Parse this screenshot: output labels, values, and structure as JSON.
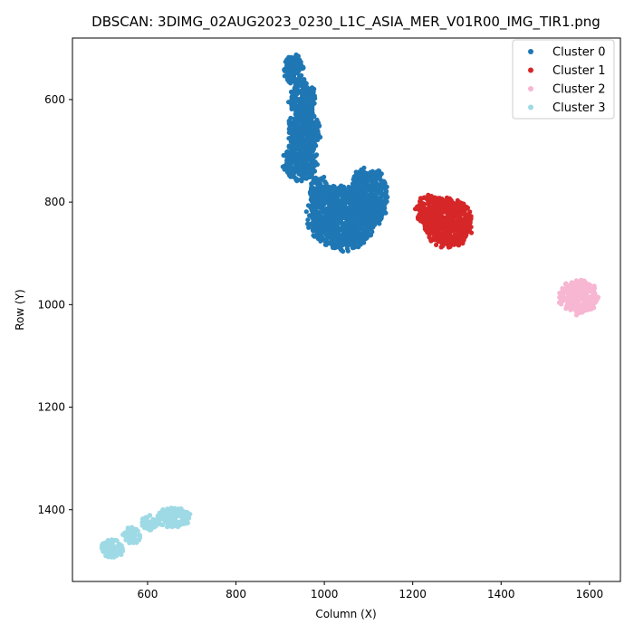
{
  "chart_data": {
    "type": "scatter",
    "title": "DBSCAN: 3DIMG_02AUG2023_0230_L1C_ASIA_MER_V01R00_IMG_TIR1.png",
    "xlabel": "Column (X)",
    "ylabel": "Row (Y)",
    "xlim": [
      430,
      1670
    ],
    "ylim": [
      1540,
      480
    ],
    "y_inverted": true,
    "x_ticks": [
      600,
      800,
      1000,
      1200,
      1400,
      1600
    ],
    "y_ticks": [
      600,
      800,
      1000,
      1200,
      1400
    ],
    "x_tick_labels": [
      "600",
      "800",
      "1000",
      "1200",
      "1400",
      "1600"
    ],
    "y_tick_labels": [
      "600",
      "800",
      "1000",
      "1200",
      "1400"
    ],
    "grid": false,
    "legend_position": "top-right",
    "series": [
      {
        "name": "Cluster 0",
        "color": "#1f77b4",
        "regions": [
          {
            "x": 930,
            "y": 540,
            "rx": 25,
            "ry": 30
          },
          {
            "x": 950,
            "y": 600,
            "rx": 30,
            "ry": 40
          },
          {
            "x": 955,
            "y": 660,
            "rx": 38,
            "ry": 45
          },
          {
            "x": 945,
            "y": 720,
            "rx": 40,
            "ry": 40
          },
          {
            "x": 1040,
            "y": 830,
            "rx": 80,
            "ry": 65
          },
          {
            "x": 1100,
            "y": 790,
            "rx": 45,
            "ry": 60
          },
          {
            "x": 990,
            "y": 780,
            "rx": 25,
            "ry": 30
          }
        ]
      },
      {
        "name": "Cluster 1",
        "color": "#d62728",
        "regions": [
          {
            "x": 1280,
            "y": 840,
            "rx": 55,
            "ry": 50
          },
          {
            "x": 1240,
            "y": 815,
            "rx": 35,
            "ry": 30
          }
        ]
      },
      {
        "name": "Cluster 2",
        "color": "#f7b6d2",
        "regions": [
          {
            "x": 1575,
            "y": 985,
            "rx": 45,
            "ry": 35
          }
        ]
      },
      {
        "name": "Cluster 3",
        "color": "#9edae5",
        "regions": [
          {
            "x": 520,
            "y": 1475,
            "rx": 28,
            "ry": 18
          },
          {
            "x": 565,
            "y": 1450,
            "rx": 22,
            "ry": 18
          },
          {
            "x": 605,
            "y": 1425,
            "rx": 20,
            "ry": 15
          },
          {
            "x": 660,
            "y": 1415,
            "rx": 40,
            "ry": 20
          }
        ]
      }
    ]
  }
}
